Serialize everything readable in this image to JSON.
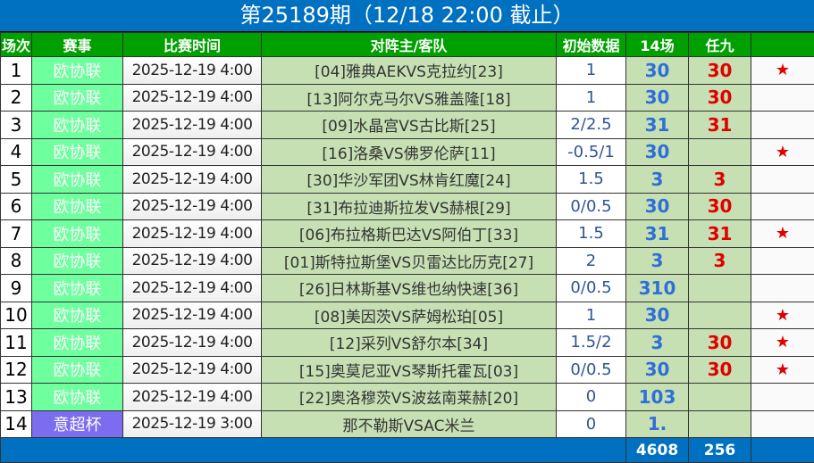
{
  "title": "第25189期（12/18 22:00 截止）",
  "headers": [
    "场次",
    "赛事",
    "比赛时间",
    "对阵主/客队",
    "初始数据",
    "14场",
    "任九",
    ""
  ],
  "rows": [
    {
      "no": "1",
      "league": "欧协联",
      "time": "2025-12-19 4:00",
      "match": "[04]雅典AEKVS克拉约[23]",
      "init": "1",
      "c14": "30",
      "r9": "30",
      "star": "★"
    },
    {
      "no": "2",
      "league": "欧协联",
      "time": "2025-12-19 4:00",
      "match": "[13]阿尔克马尔VS雅盖隆[18]",
      "init": "1",
      "c14": "30",
      "r9": "30",
      "star": ""
    },
    {
      "no": "3",
      "league": "欧协联",
      "time": "2025-12-19 4:00",
      "match": "[09]水晶宫VS古比斯[25]",
      "init": "2/2.5",
      "c14": "31",
      "r9": "31",
      "star": ""
    },
    {
      "no": "4",
      "league": "欧协联",
      "time": "2025-12-19 4:00",
      "match": "[16]洛桑VS佛罗伦萨[11]",
      "init": "-0.5/1",
      "c14": "30",
      "r9": "",
      "star": "★"
    },
    {
      "no": "5",
      "league": "欧协联",
      "time": "2025-12-19 4:00",
      "match": "[30]华沙军团VS林肯红魔[24]",
      "init": "1.5",
      "c14": "3",
      "r9": "3",
      "star": ""
    },
    {
      "no": "6",
      "league": "欧协联",
      "time": "2025-12-19 4:00",
      "match": "[31]布拉迪斯拉发VS赫根[29]",
      "init": "0/0.5",
      "c14": "30",
      "r9": "30",
      "star": ""
    },
    {
      "no": "7",
      "league": "欧协联",
      "time": "2025-12-19 4:00",
      "match": "[06]布拉格斯巴达VS阿伯丁[33]",
      "init": "1.5",
      "c14": "31",
      "r9": "31",
      "star": "★"
    },
    {
      "no": "8",
      "league": "欧协联",
      "time": "2025-12-19 4:00",
      "match": "[01]斯特拉斯堡VS贝雷达比历克[27]",
      "init": "2",
      "c14": "3",
      "r9": "3",
      "star": ""
    },
    {
      "no": "9",
      "league": "欧协联",
      "time": "2025-12-19 4:00",
      "match": "[26]日林斯基VS维也纳快速[36]",
      "init": "0/0.5",
      "c14": "310",
      "r9": "",
      "star": ""
    },
    {
      "no": "10",
      "league": "欧协联",
      "time": "2025-12-19 4:00",
      "match": "[08]美因茨VS萨姆松珀[05]",
      "init": "1",
      "c14": "30",
      "r9": "",
      "star": "★"
    },
    {
      "no": "11",
      "league": "欧协联",
      "time": "2025-12-19 4:00",
      "match": "[12]采列VS舒尔本[34]",
      "init": "1.5/2",
      "c14": "3",
      "r9": "30",
      "star": "★"
    },
    {
      "no": "12",
      "league": "欧协联",
      "time": "2025-12-19 4:00",
      "match": "[15]奥莫尼亚VS琴斯托霍瓦[03]",
      "init": "0/0.5",
      "c14": "30",
      "r9": "30",
      "star": "★"
    },
    {
      "no": "13",
      "league": "欧协联",
      "time": "2025-12-19 4:00",
      "match": "[22]奥洛穆茨VS波兹南莱赫[20]",
      "init": "0",
      "c14": "103",
      "r9": "",
      "star": ""
    },
    {
      "no": "14",
      "league": "意超杯",
      "time": "2025-12-19 3:00",
      "match": "那不勒斯VSAC米兰",
      "init": "0",
      "c14": "1.",
      "r9": "",
      "star": ""
    }
  ],
  "footer": {
    "c14": "4608",
    "r9": "256"
  }
}
